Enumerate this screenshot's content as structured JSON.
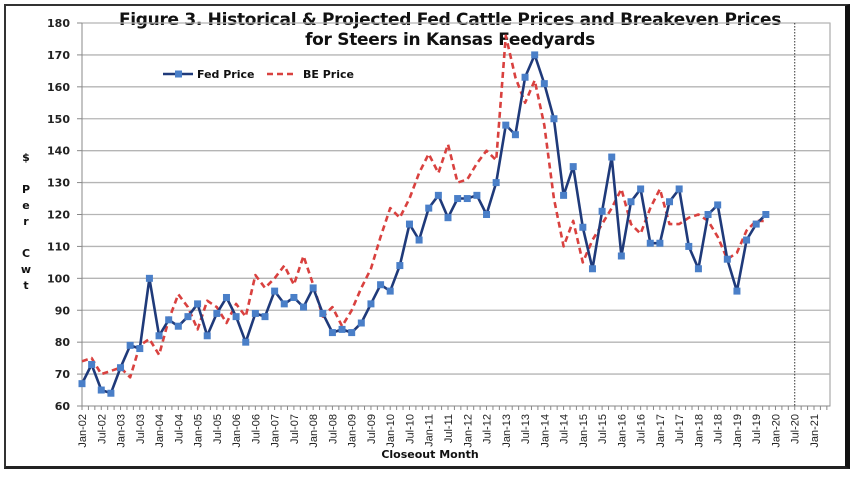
{
  "chart_data": {
    "type": "line",
    "title": "Figure 3.  Historical & Projected Fed Cattle Prices and Breakeven Prices",
    "subtitle": "for Steers in Kansas Feedyards",
    "xlabel": "Closeout Month",
    "ylabel_chars": [
      "$",
      "",
      "P",
      "e",
      "r",
      "",
      "C",
      "w",
      "t"
    ],
    "ylim": [
      60,
      180
    ],
    "yticks": [
      60,
      70,
      80,
      90,
      100,
      110,
      120,
      130,
      140,
      150,
      160,
      170,
      180
    ],
    "xtick_labels": [
      "Jan-02",
      "Jul-02",
      "Jan-03",
      "Jul-03",
      "Jan-04",
      "Jul-04",
      "Jan-05",
      "Jul-05",
      "Jan-06",
      "Jul-06",
      "Jan-07",
      "Jul-07",
      "Jan-08",
      "Jul-08",
      "Jan-09",
      "Jul-09",
      "Jan-10",
      "Jul-10",
      "Jan-11",
      "Jul-11",
      "Jan-12",
      "Jul-12",
      "Jan-13",
      "Jul-13",
      "Jan-14",
      "Jul-14",
      "Jan-15",
      "Jul-15",
      "Jan-16",
      "Jul-16",
      "Jan-17",
      "Jul-17",
      "Jan-18",
      "Jul-18",
      "Jan-19",
      "Jul-19",
      "Jan-20",
      "Jul-20",
      "Jan-21"
    ],
    "x_start": "Jan-02",
    "x_step": "quarterly",
    "projection_marker": "Jul-20",
    "grid": true,
    "legend": {
      "placement": "top-left",
      "entries": [
        "Fed Price",
        "BE Price"
      ]
    },
    "series": [
      {
        "name": "Fed Price",
        "color": "#1f3a7a",
        "marker_color": "#4a7fc8",
        "style": "solid-markers",
        "values": [
          67,
          73,
          65,
          64,
          72,
          79,
          78,
          100,
          82,
          87,
          85,
          88,
          92,
          82,
          89,
          94,
          88,
          80,
          89,
          88,
          96,
          92,
          94,
          91,
          97,
          89,
          83,
          84,
          83,
          86,
          92,
          98,
          96,
          104,
          117,
          112,
          122,
          126,
          119,
          125,
          125,
          126,
          120,
          130,
          148,
          145,
          163,
          170,
          161,
          150,
          126,
          135,
          116,
          103,
          121,
          138,
          107,
          124,
          128,
          111,
          111,
          124,
          128,
          110,
          103,
          120,
          123,
          106,
          96,
          112,
          117,
          120
        ]
      },
      {
        "name": "BE Price",
        "color": "#d9413f",
        "style": "dashed",
        "values": [
          74,
          75,
          70,
          71,
          72,
          69,
          79,
          81,
          76,
          87,
          95,
          91,
          84,
          93,
          91,
          86,
          92,
          88,
          101,
          97,
          100,
          104,
          98,
          107,
          98,
          88,
          91,
          85,
          90,
          97,
          103,
          113,
          122,
          119,
          125,
          133,
          139,
          133,
          142,
          130,
          131,
          136,
          140,
          137,
          176,
          163,
          155,
          162,
          148,
          125,
          110,
          118,
          105,
          112,
          117,
          122,
          128,
          117,
          114,
          122,
          128,
          117,
          117,
          119,
          120,
          118,
          113,
          106,
          108,
          115,
          118,
          118
        ]
      }
    ]
  }
}
